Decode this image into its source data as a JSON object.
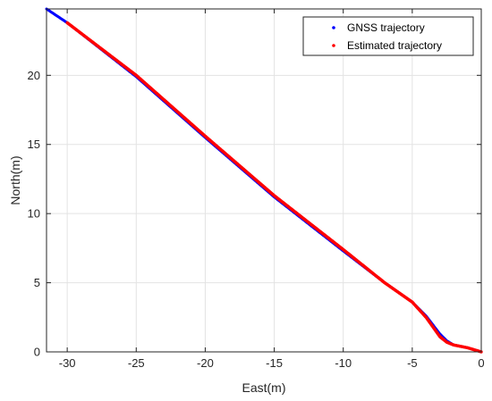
{
  "chart_data": {
    "type": "scatter",
    "title": "",
    "xlabel": "East(m)",
    "ylabel": "North(m)",
    "xlim": [
      -31.5,
      0
    ],
    "ylim": [
      0,
      24.8
    ],
    "xticks": [
      -30,
      -25,
      -20,
      -15,
      -10,
      -5,
      0
    ],
    "yticks": [
      0,
      5,
      10,
      15,
      20
    ],
    "xtick_labels": [
      "-30",
      "-25",
      "-20",
      "-15",
      "-10",
      "-5",
      "0"
    ],
    "ytick_labels": [
      "0",
      "5",
      "10",
      "15",
      "20"
    ],
    "grid": true,
    "legend_position": "top-right",
    "series": [
      {
        "name": "GNSS trajectory",
        "color": "#0000ff",
        "x_start": -31.5,
        "x_end": 0,
        "keypoints": [
          [
            -31.5,
            24.8
          ],
          [
            -30,
            23.8
          ],
          [
            -25,
            19.9
          ],
          [
            -20,
            15.5
          ],
          [
            -15,
            11.2
          ],
          [
            -10,
            7.3
          ],
          [
            -7,
            5.0
          ],
          [
            -5,
            3.6
          ],
          [
            -4,
            2.6
          ],
          [
            -3,
            1.3
          ],
          [
            -2.5,
            0.8
          ],
          [
            -2,
            0.5
          ],
          [
            -1,
            0.3
          ],
          [
            0,
            0
          ]
        ]
      },
      {
        "name": "Estimated trajectory",
        "color": "#ff0000",
        "x_start": -30,
        "x_end": 0,
        "keypoints": [
          [
            -30,
            23.8
          ],
          [
            -25,
            20.0
          ],
          [
            -20,
            15.6
          ],
          [
            -15,
            11.3
          ],
          [
            -10,
            7.4
          ],
          [
            -7,
            5.0
          ],
          [
            -5,
            3.6
          ],
          [
            -4,
            2.5
          ],
          [
            -3,
            1.1
          ],
          [
            -2.5,
            0.7
          ],
          [
            -2,
            0.5
          ],
          [
            -1,
            0.3
          ],
          [
            0,
            0
          ]
        ]
      }
    ]
  }
}
